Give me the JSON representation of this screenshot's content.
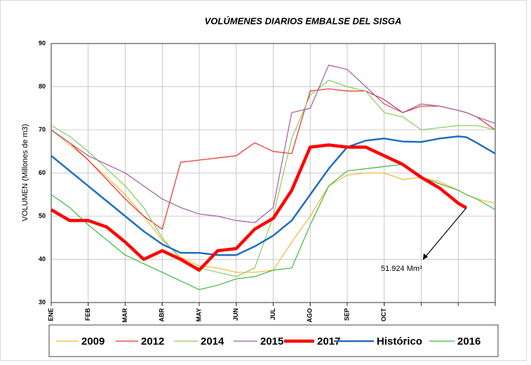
{
  "chart_data": {
    "type": "line",
    "title": "VOLÚMENES DIARIOS EMBALSE DEL SISGA",
    "y_label": "VOLUMEN (Millones de m3)",
    "annotation": "51.924 Mm³",
    "x": [
      0,
      0.5,
      1,
      1.5,
      2,
      2.5,
      3,
      3.5,
      4,
      4.5,
      5,
      5.5,
      6,
      6.5,
      7,
      7.5,
      8,
      8.5,
      9,
      9.5,
      10,
      10.5,
      11,
      11.22,
      11.5,
      12
    ],
    "xlim": [
      0,
      12
    ],
    "xticks": [
      {
        "value": 0,
        "label": "ENE"
      },
      {
        "value": 1,
        "label": "FEB"
      },
      {
        "value": 2,
        "label": "MAR"
      },
      {
        "value": 3,
        "label": "ABR"
      },
      {
        "value": 4,
        "label": "MAY"
      },
      {
        "value": 5,
        "label": "JUN"
      },
      {
        "value": 6,
        "label": "JUL"
      },
      {
        "value": 7,
        "label": "AGO"
      },
      {
        "value": 8,
        "label": "SEP"
      },
      {
        "value": 9,
        "label": "OCT"
      }
    ],
    "ylim": [
      30,
      90
    ],
    "yticks": [
      30,
      40,
      50,
      60,
      70,
      80,
      90
    ],
    "grid": true,
    "legend": "bottom",
    "series": [
      {
        "name": "2009",
        "color": "#f5b731",
        "width": 1.2,
        "values": [
          70,
          66.5,
          63,
          59,
          55,
          50,
          44.5,
          40.5,
          38.5,
          38,
          37,
          37,
          37.5,
          44,
          50,
          57,
          59.5,
          60,
          60,
          58.5,
          59,
          58,
          56,
          55,
          54,
          53
        ]
      },
      {
        "name": "2012",
        "color": "#e8302a",
        "width": 1.2,
        "values": [
          70,
          67,
          63,
          58.5,
          54,
          50,
          47,
          62.5,
          63,
          63.5,
          64,
          67,
          65,
          64.5,
          79,
          79.5,
          79,
          79,
          77,
          74,
          75.5,
          75.5,
          74.5,
          74,
          73,
          70
        ]
      },
      {
        "name": "2014",
        "color": "#86cc5e",
        "width": 1.2,
        "values": [
          71,
          68.5,
          65,
          61,
          57,
          52,
          45,
          40,
          38,
          37,
          36,
          38,
          50,
          68,
          78,
          81.5,
          80,
          79,
          74,
          73,
          70,
          70.5,
          71,
          71,
          71,
          70
        ]
      },
      {
        "name": "2015",
        "color": "#a45aa0",
        "width": 1.2,
        "values": [
          70,
          67,
          64,
          62,
          60,
          57,
          54,
          52,
          50.5,
          50,
          49,
          48.5,
          52,
          74,
          75,
          85,
          84,
          80,
          76,
          74,
          76,
          75.5,
          74.5,
          74,
          73,
          71.5
        ]
      },
      {
        "name": "2017",
        "color": "#ff0000",
        "width": 4.5,
        "values": [
          51.5,
          49,
          49,
          47.5,
          44,
          40,
          42,
          40,
          37.5,
          42,
          42.5,
          47,
          49.5,
          56,
          66,
          66.5,
          66,
          66,
          64,
          62,
          59,
          56.5,
          53,
          51.924,
          null,
          null
        ]
      },
      {
        "name": "Histórico",
        "color": "#1f6fbf",
        "width": 2.5,
        "values": [
          64,
          60.5,
          57,
          53.5,
          50,
          46.5,
          43.5,
          41.5,
          41.5,
          41,
          41,
          43,
          45.5,
          49,
          55,
          61,
          66,
          67.5,
          68,
          67.3,
          67.2,
          68,
          68.5,
          68.3,
          67,
          64.5
        ]
      },
      {
        "name": "2016",
        "color": "#3cb83c",
        "width": 1.2,
        "values": [
          55,
          52,
          48,
          44.5,
          41,
          39,
          37,
          35,
          33,
          34,
          35.5,
          36,
          37.5,
          38,
          48,
          57,
          60.5,
          61,
          61.5,
          62,
          59,
          57.5,
          56,
          55,
          54,
          51.5
        ]
      }
    ]
  }
}
